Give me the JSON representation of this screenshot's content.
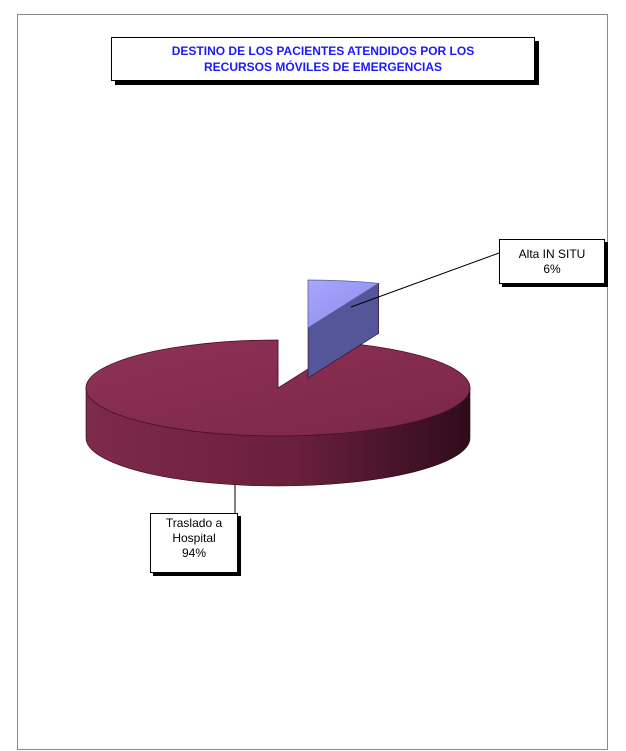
{
  "chart_data": {
    "type": "pie",
    "style": "3d-exploded",
    "title": [
      "DESTINO DE LOS PACIENTES ATENDIDOS POR LOS",
      "RECURSOS MÓVILES DE EMERGENCIAS"
    ],
    "slices": [
      {
        "label_lines": [
          "Alta IN SITU"
        ],
        "value": 6,
        "percent_label": "6%",
        "color": "#9999ff"
      },
      {
        "label_lines": [
          "Traslado a",
          "Hospital"
        ],
        "value": 94,
        "percent_label": "94%",
        "color": "#993366"
      }
    ],
    "title_color": "#1a1aff"
  }
}
